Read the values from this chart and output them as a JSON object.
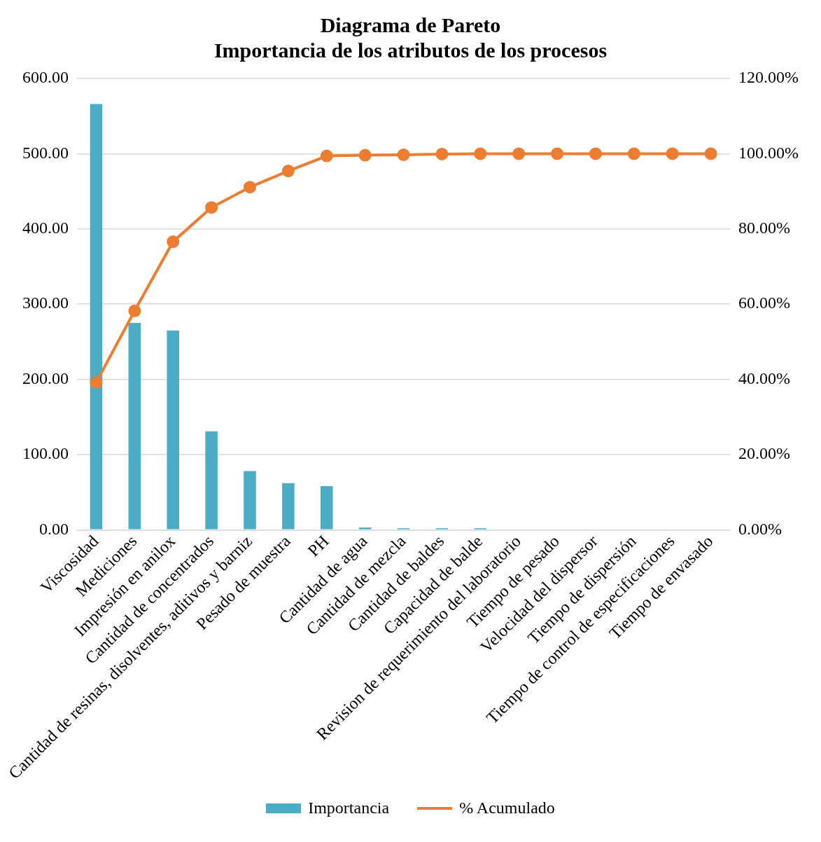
{
  "chart_data": {
    "type": "bar",
    "title": [
      "Diagrama de Pareto",
      "Importancia de los atributos de los procesos"
    ],
    "categories": [
      "Viscosidad",
      "Mediciones",
      "Impresión en anilox",
      "Cantidad de concentrados",
      "Cantidad de resinas, disolventes, aditivos y barniz",
      "Pesado de muestra",
      "PH",
      "Cantidad de agua",
      "Cantidad de mezcla",
      "Cantidad de baldes",
      "Capacidad de balde",
      "Revision de requerimiento del laboratorio",
      "Tiempo de pesado",
      "Velocidad del dispersor",
      "Tiempo de dispersión",
      "Tiempo de control de especificaciones",
      "Tiempo de envasado"
    ],
    "series": [
      {
        "name": "Importancia",
        "color": "#4bacc6",
        "values": [
          566,
          275,
          265,
          131,
          78,
          62,
          58,
          3,
          2,
          2,
          2,
          0,
          0,
          0,
          0,
          0,
          0
        ]
      },
      {
        "name": "% Acumulado",
        "type": "line",
        "axis": "y2",
        "color": "#ed7d31",
        "marker": "circle",
        "values": [
          39.2,
          58.2,
          76.6,
          85.7,
          91.1,
          95.4,
          99.4,
          99.6,
          99.7,
          99.9,
          100,
          100,
          100,
          100,
          100,
          100,
          100
        ]
      }
    ],
    "ylim": [
      0,
      600
    ],
    "yticks": [
      {
        "value": 0,
        "label": "0.00"
      },
      {
        "value": 100,
        "label": "100.00"
      },
      {
        "value": 200,
        "label": "200.00"
      },
      {
        "value": 300,
        "label": "300.00"
      },
      {
        "value": 400,
        "label": "400.00"
      },
      {
        "value": 500,
        "label": "500.00"
      },
      {
        "value": 600,
        "label": "600.00"
      }
    ],
    "y2lim": [
      0,
      120
    ],
    "y2ticks": [
      {
        "value": 0,
        "label": "0.00%"
      },
      {
        "value": 20,
        "label": "20.00%"
      },
      {
        "value": 40,
        "label": "40.00%"
      },
      {
        "value": 60,
        "label": "60.00%"
      },
      {
        "value": 80,
        "label": "80.00%"
      },
      {
        "value": 100,
        "label": "100.00%"
      },
      {
        "value": 120,
        "label": "120.00%"
      }
    ],
    "grid": "y",
    "legend": "bottom"
  }
}
